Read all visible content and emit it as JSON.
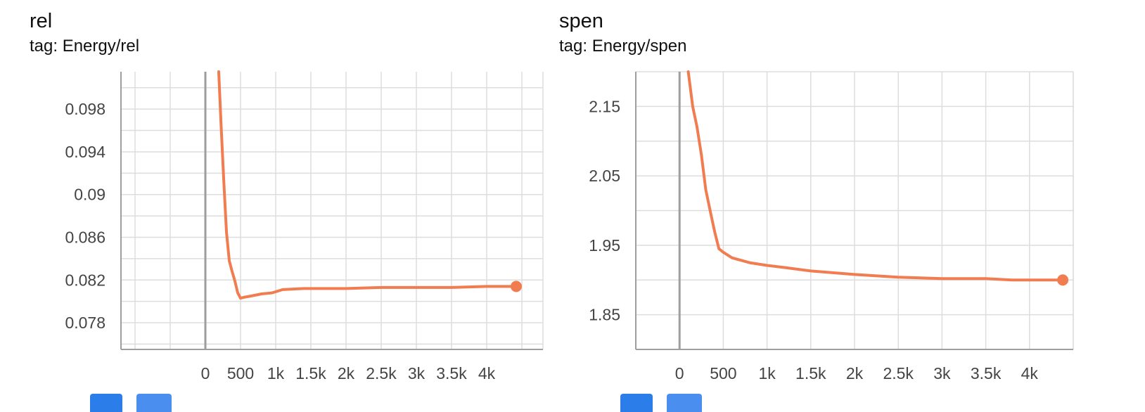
{
  "colors": {
    "series": "#f07c50",
    "grid": "#dddddd",
    "axis": "#9e9e9e",
    "zero_line": "#9e9e9e",
    "button": "#2b7de9"
  },
  "chart_data": [
    {
      "type": "line",
      "title": "rel",
      "subtitle": "tag: Energy/rel",
      "xlabel": "",
      "ylabel": "",
      "xlim": [
        -1200,
        4800
      ],
      "ylim": [
        0.0755,
        0.1015
      ],
      "x_ticks": [
        0,
        500,
        1000,
        1500,
        2000,
        2500,
        3000,
        3500,
        4000
      ],
      "x_tick_labels": [
        "0",
        "500",
        "1k",
        "1.5k",
        "2k",
        "2.5k",
        "3k",
        "3.5k",
        "4k"
      ],
      "y_ticks": [
        0.078,
        0.082,
        0.086,
        0.09,
        0.094,
        0.098
      ],
      "y_tick_labels": [
        "0.078",
        "0.082",
        "0.086",
        "0.09",
        "0.094",
        "0.098"
      ],
      "grid": true,
      "series": [
        {
          "x": [
            190,
            220,
            260,
            300,
            340,
            380,
            420,
            460,
            500,
            560,
            650,
            800,
            950,
            1100,
            1400,
            2000,
            2500,
            3000,
            3500,
            4000,
            4420
          ],
          "y": [
            0.1015,
            0.097,
            0.0915,
            0.0865,
            0.0838,
            0.0828,
            0.0819,
            0.0808,
            0.0803,
            0.0804,
            0.0805,
            0.0807,
            0.0808,
            0.0811,
            0.0812,
            0.0812,
            0.0813,
            0.0813,
            0.0813,
            0.0814,
            0.0814
          ]
        }
      ]
    },
    {
      "type": "line",
      "title": "spen",
      "subtitle": "tag: Energy/spen",
      "xlabel": "",
      "ylabel": "",
      "xlim": [
        -500,
        4500
      ],
      "ylim": [
        1.8,
        2.2
      ],
      "x_ticks": [
        0,
        500,
        1000,
        1500,
        2000,
        2500,
        3000,
        3500,
        4000
      ],
      "x_tick_labels": [
        "0",
        "500",
        "1k",
        "1.5k",
        "2k",
        "2.5k",
        "3k",
        "3.5k",
        "4k"
      ],
      "y_ticks": [
        1.85,
        1.95,
        2.05,
        2.15
      ],
      "y_tick_labels": [
        "1.85",
        "1.95",
        "2.05",
        "2.15"
      ],
      "grid": true,
      "series": [
        {
          "x": [
            100,
            150,
            200,
            250,
            300,
            350,
            400,
            450,
            500,
            600,
            800,
            1000,
            1200,
            1500,
            2000,
            2500,
            3000,
            3500,
            3800,
            4000,
            4380
          ],
          "y": [
            2.2,
            2.15,
            2.12,
            2.08,
            2.03,
            2.0,
            1.97,
            1.945,
            1.94,
            1.932,
            1.925,
            1.921,
            1.918,
            1.913,
            1.908,
            1.904,
            1.902,
            1.902,
            1.9,
            1.9,
            1.9
          ]
        }
      ]
    }
  ]
}
